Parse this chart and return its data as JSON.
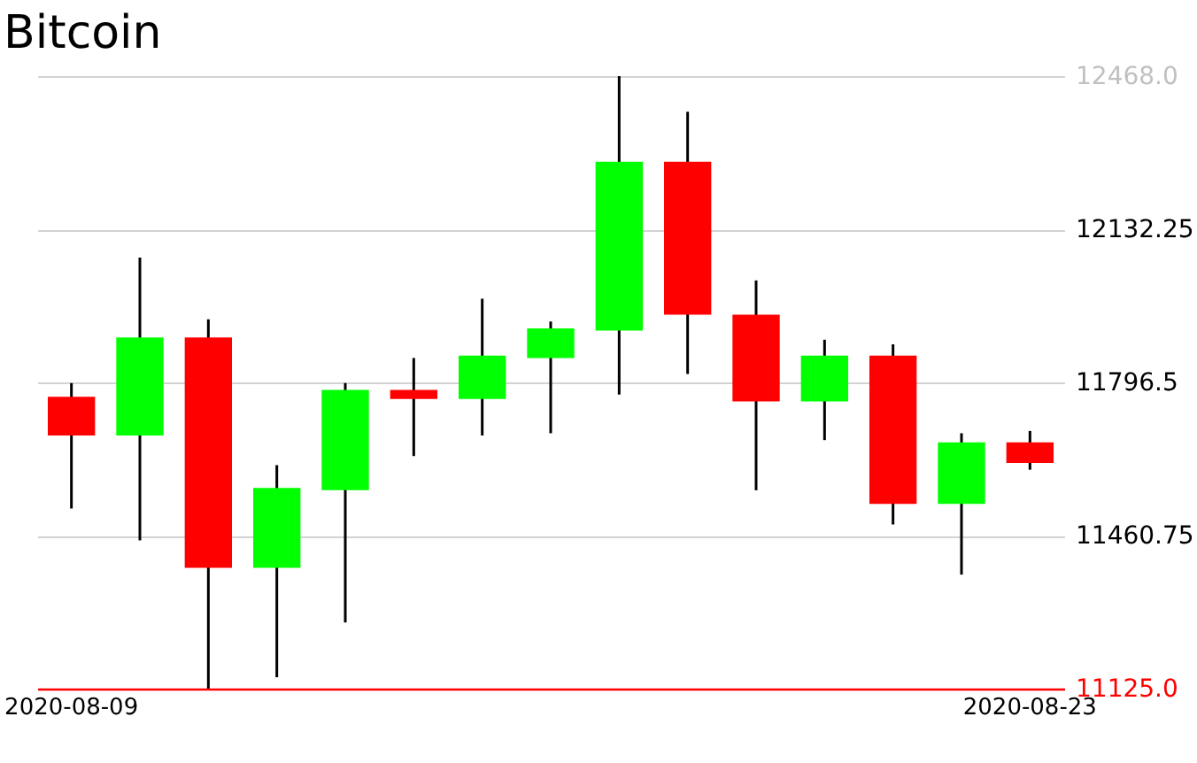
{
  "chart_data": {
    "type": "candlestick",
    "title": "Bitcoin",
    "categories": [
      "2020-08-09",
      null,
      null,
      null,
      null,
      null,
      null,
      null,
      null,
      null,
      null,
      null,
      null,
      null,
      "2020-08-23"
    ],
    "ohlc": [
      [
        11765,
        11795,
        11520,
        11680
      ],
      [
        11680,
        12070,
        11450,
        11895
      ],
      [
        11895,
        11935,
        11125,
        11390
      ],
      [
        11390,
        11615,
        11150,
        11565
      ],
      [
        11560,
        11795,
        11270,
        11780
      ],
      [
        11780,
        11850,
        11635,
        11760
      ],
      [
        11760,
        11980,
        11680,
        11855
      ],
      [
        11850,
        11930,
        11685,
        11915
      ],
      [
        11910,
        12468,
        11770,
        12280
      ],
      [
        12280,
        12390,
        11815,
        11945
      ],
      [
        11945,
        12020,
        11560,
        11755
      ],
      [
        11755,
        11890,
        11670,
        11855
      ],
      [
        11855,
        11880,
        11485,
        11530
      ],
      [
        11530,
        11685,
        11375,
        11665
      ],
      [
        11665,
        11690,
        11605,
        11620
      ]
    ],
    "colors": [
      "#ff0000",
      "#00ff00",
      "#ff0000",
      "#00ff00",
      "#00ff00",
      "#ff0000",
      "#00ff00",
      "#00ff00",
      "#00ff00",
      "#ff0000",
      "#ff0000",
      "#00ff00",
      "#ff0000",
      "#00ff00",
      "#ff0000"
    ],
    "ylim": [
      11125,
      12468
    ],
    "yticks": [
      {
        "value": 11125,
        "label": "11125.0"
      },
      11460.75,
      11796.5,
      12132.25,
      {
        "value": 12468,
        "label": "12468.0"
      }
    ],
    "grid": "y"
  }
}
